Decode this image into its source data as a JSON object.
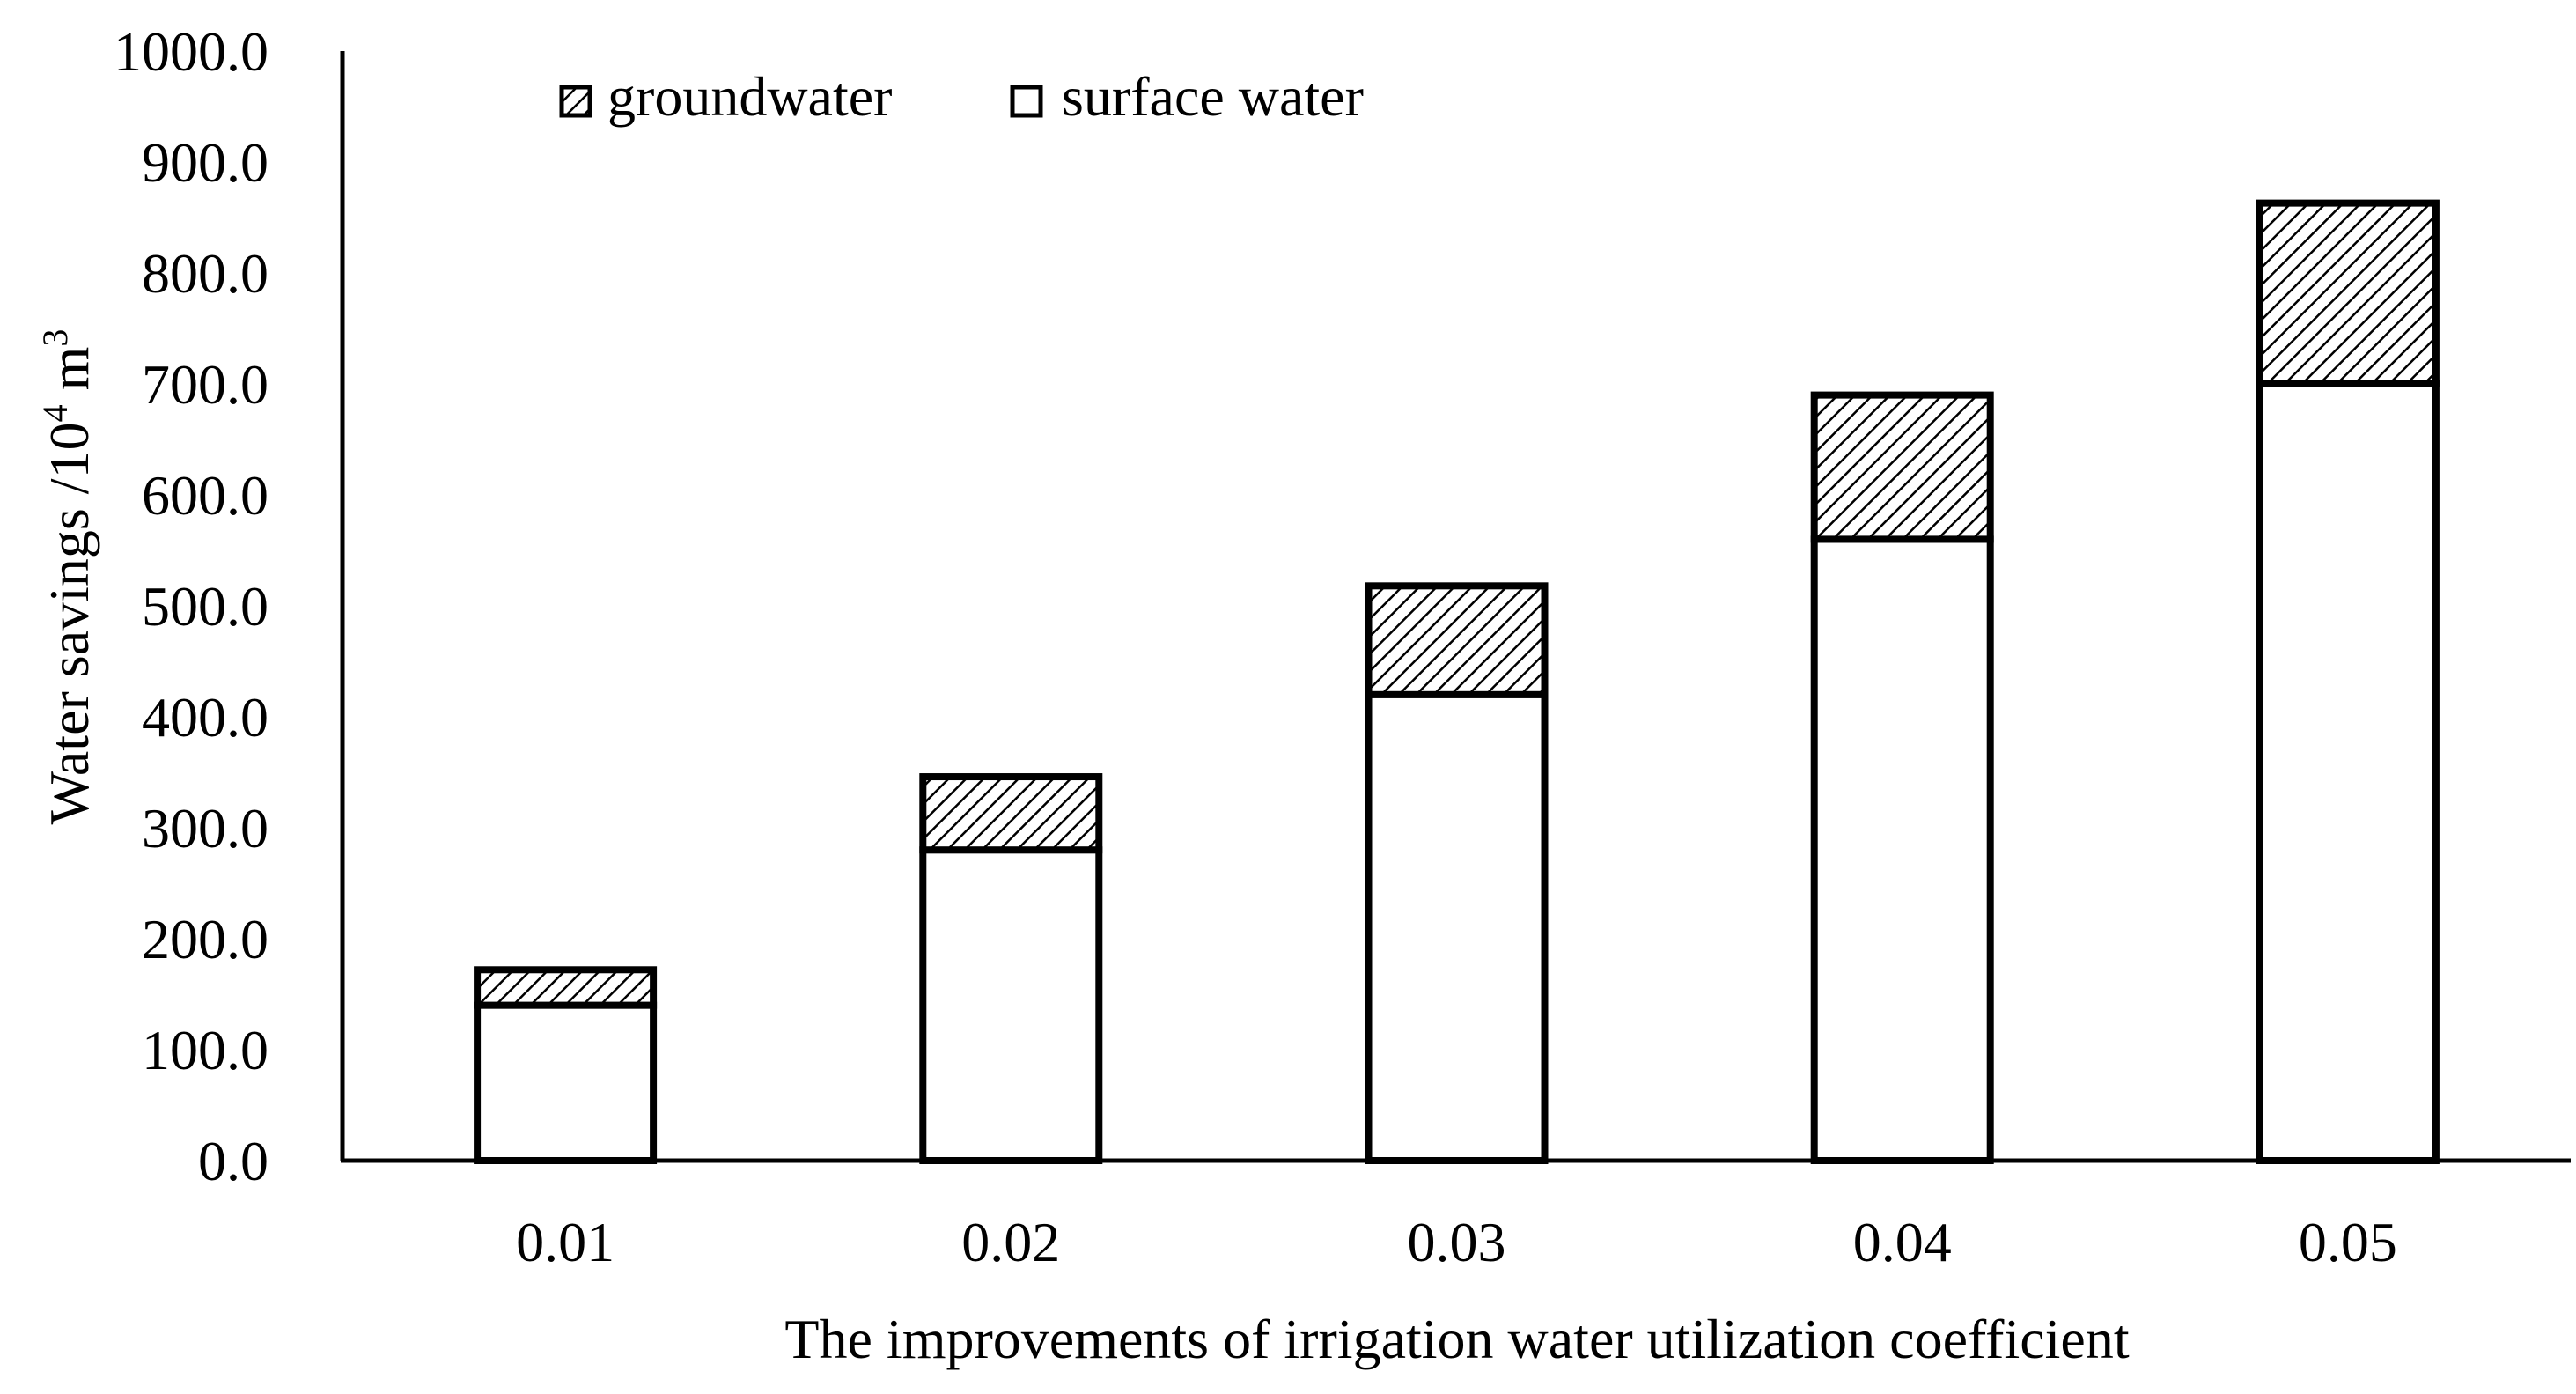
{
  "chart_data": {
    "type": "bar",
    "stacked": true,
    "title": "",
    "xlabel": "The improvements of irrigation water utilization coefficient",
    "ylabel": {
      "prefix": "Water savings /10",
      "superscript1": "4",
      "middle": " m",
      "superscript2": "3"
    },
    "categories": [
      "0.01",
      "0.02",
      "0.03",
      "0.04",
      "0.05"
    ],
    "series": [
      {
        "name": "surface water",
        "pattern": "solid-white",
        "values": [
          140,
          280,
          420,
          560,
          700
        ]
      },
      {
        "name": "groundwater",
        "pattern": "diagonal-hatch",
        "values": [
          32,
          66,
          98,
          130,
          163
        ]
      }
    ],
    "ylim": [
      0,
      1000
    ],
    "yticks": [
      "0.0",
      "100.0",
      "200.0",
      "300.0",
      "400.0",
      "500.0",
      "600.0",
      "700.0",
      "800.0",
      "900.0",
      "1000.0"
    ],
    "legend": {
      "placement": "top-left",
      "entries": [
        "groundwater",
        "surface water"
      ]
    },
    "grid": false,
    "colors": {
      "stroke": "#000000",
      "fill": "#ffffff",
      "hatch": "#000000"
    }
  }
}
